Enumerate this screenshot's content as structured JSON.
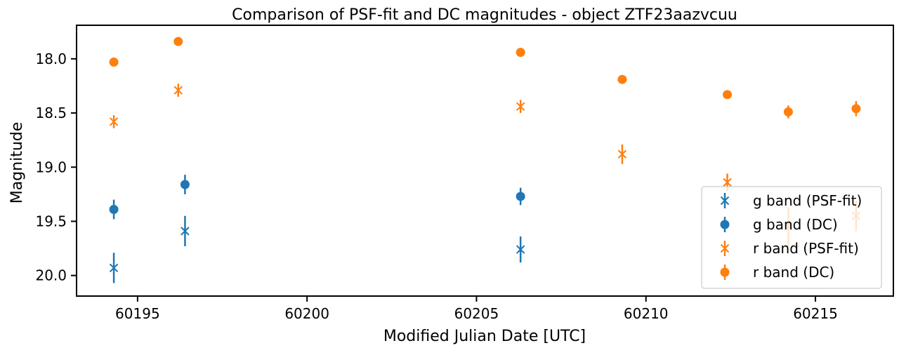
{
  "chart_data": {
    "type": "scatter",
    "title": "Comparison of PSF-fit and DC magnitudes - object ZTF23aazvcuu",
    "xlabel": "Modified Julian Date [UTC]",
    "ylabel": "Magnitude",
    "xlim": [
      60193.2,
      60217.3
    ],
    "ylim": [
      20.19,
      17.69
    ],
    "y_inverted": true,
    "xticks": [
      60195,
      60200,
      60205,
      60210,
      60215
    ],
    "xtick_labels": [
      "60195",
      "60200",
      "60205",
      "60210",
      "60215"
    ],
    "yticks": [
      18.0,
      18.5,
      19.0,
      19.5,
      20.0
    ],
    "ytick_labels": [
      "18.0",
      "18.5",
      "19.0",
      "19.5",
      "20.0"
    ],
    "grid": false,
    "legend_position": "lower-right",
    "series": [
      {
        "name": "g band (PSF-fit)",
        "color": "#1f77b4",
        "marker": "x",
        "points": [
          {
            "x": 60194.3,
            "y": 19.93,
            "err": 0.14
          },
          {
            "x": 60196.4,
            "y": 19.59,
            "err": 0.14
          },
          {
            "x": 60206.3,
            "y": 19.76,
            "err": 0.12
          }
        ]
      },
      {
        "name": "g band (DC)",
        "color": "#1f77b4",
        "marker": "o",
        "points": [
          {
            "x": 60194.3,
            "y": 19.39,
            "err": 0.09
          },
          {
            "x": 60196.4,
            "y": 19.16,
            "err": 0.09
          },
          {
            "x": 60206.3,
            "y": 19.27,
            "err": 0.08
          }
        ]
      },
      {
        "name": "r band (PSF-fit)",
        "color": "#ff7f0e",
        "marker": "x",
        "points": [
          {
            "x": 60194.3,
            "y": 18.58,
            "err": 0.06
          },
          {
            "x": 60196.2,
            "y": 18.29,
            "err": 0.06
          },
          {
            "x": 60206.3,
            "y": 18.44,
            "err": 0.06
          },
          {
            "x": 60209.3,
            "y": 18.88,
            "err": 0.09
          },
          {
            "x": 60212.4,
            "y": 19.14,
            "err": 0.08
          },
          {
            "x": 60214.2,
            "y": 19.55,
            "err": 0.18
          },
          {
            "x": 60216.2,
            "y": 19.45,
            "err": 0.14
          }
        ]
      },
      {
        "name": "r band (DC)",
        "color": "#ff7f0e",
        "marker": "o",
        "points": [
          {
            "x": 60194.3,
            "y": 18.03,
            "err": 0.02
          },
          {
            "x": 60196.2,
            "y": 17.84,
            "err": 0.02
          },
          {
            "x": 60206.3,
            "y": 17.94,
            "err": 0.02
          },
          {
            "x": 60209.3,
            "y": 18.19,
            "err": 0.04
          },
          {
            "x": 60212.4,
            "y": 18.33,
            "err": 0.04
          },
          {
            "x": 60214.2,
            "y": 18.49,
            "err": 0.06
          },
          {
            "x": 60216.2,
            "y": 18.46,
            "err": 0.07
          }
        ]
      }
    ]
  }
}
